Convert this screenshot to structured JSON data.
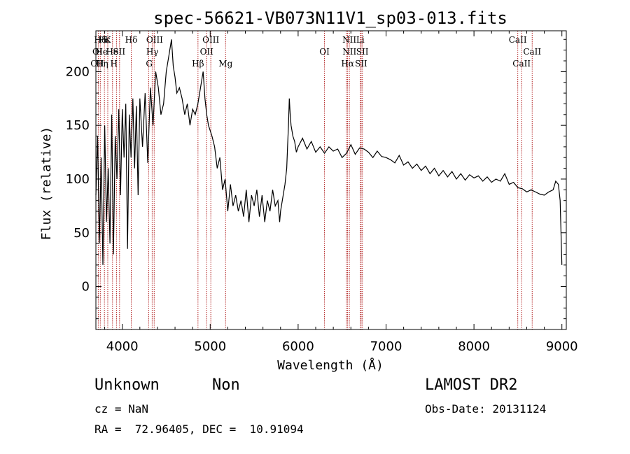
{
  "chart_data": {
    "type": "line",
    "title": "spec-56621-VB073N11V1_sp03-013.fits",
    "xlabel": "Wavelength (Å)",
    "ylabel": "Flux (relative)",
    "xlim": [
      3700,
      9050
    ],
    "ylim": [
      -40,
      238
    ],
    "x_ticks": [
      4000,
      5000,
      6000,
      7000,
      8000,
      9000
    ],
    "y_ticks": [
      0,
      50,
      100,
      150,
      200
    ],
    "grid": false,
    "series": [
      {
        "color": "#000000",
        "x": [
          3700,
          3720,
          3740,
          3760,
          3780,
          3800,
          3820,
          3840,
          3860,
          3880,
          3900,
          3920,
          3940,
          3960,
          3980,
          4000,
          4020,
          4040,
          4060,
          4080,
          4100,
          4120,
          4140,
          4160,
          4180,
          4200,
          4230,
          4260,
          4290,
          4320,
          4350,
          4380,
          4410,
          4440,
          4470,
          4500,
          4530,
          4560,
          4580,
          4600,
          4620,
          4650,
          4680,
          4710,
          4740,
          4770,
          4800,
          4830,
          4860,
          4880,
          4900,
          4920,
          4940,
          4960,
          4980,
          5000,
          5020,
          5050,
          5080,
          5110,
          5140,
          5170,
          5200,
          5230,
          5260,
          5290,
          5320,
          5350,
          5380,
          5410,
          5440,
          5470,
          5500,
          5530,
          5560,
          5590,
          5620,
          5650,
          5680,
          5710,
          5740,
          5770,
          5790,
          5800,
          5820,
          5850,
          5870,
          5880,
          5890,
          5900,
          5910,
          5920,
          5940,
          5960,
          5980,
          6000,
          6050,
          6100,
          6150,
          6200,
          6250,
          6300,
          6350,
          6400,
          6450,
          6500,
          6550,
          6600,
          6650,
          6700,
          6750,
          6800,
          6850,
          6900,
          6950,
          7000,
          7050,
          7100,
          7150,
          7200,
          7250,
          7300,
          7350,
          7400,
          7450,
          7500,
          7550,
          7600,
          7650,
          7700,
          7750,
          7800,
          7850,
          7900,
          7950,
          8000,
          8050,
          8100,
          8150,
          8200,
          8250,
          8300,
          8350,
          8400,
          8450,
          8500,
          8550,
          8600,
          8650,
          8700,
          8750,
          8800,
          8850,
          8900,
          8930,
          8960,
          8980,
          9000
        ],
        "y": [
          85,
          140,
          40,
          120,
          20,
          150,
          60,
          110,
          40,
          160,
          30,
          140,
          100,
          165,
          85,
          165,
          120,
          170,
          35,
          160,
          120,
          175,
          110,
          168,
          85,
          175,
          130,
          180,
          115,
          185,
          150,
          200,
          185,
          160,
          170,
          200,
          215,
          230,
          205,
          195,
          180,
          185,
          175,
          160,
          170,
          150,
          165,
          160,
          170,
          180,
          190,
          200,
          175,
          160,
          150,
          145,
          140,
          130,
          110,
          120,
          90,
          100,
          70,
          95,
          75,
          85,
          70,
          80,
          65,
          90,
          60,
          85,
          75,
          90,
          65,
          85,
          60,
          80,
          70,
          90,
          75,
          80,
          60,
          70,
          80,
          95,
          110,
          130,
          150,
          175,
          160,
          150,
          140,
          135,
          125,
          130,
          138,
          128,
          135,
          125,
          130,
          124,
          130,
          126,
          128,
          120,
          124,
          132,
          123,
          129,
          128,
          125,
          120,
          126,
          121,
          120,
          118,
          115,
          122,
          113,
          116,
          110,
          114,
          108,
          112,
          105,
          110,
          103,
          108,
          102,
          107,
          100,
          105,
          99,
          104,
          101,
          103,
          98,
          102,
          97,
          100,
          98,
          105,
          95,
          97,
          92,
          91,
          88,
          90,
          88,
          86,
          85,
          88,
          90,
          98,
          95,
          80,
          20
        ]
      }
    ],
    "line_labels": [
      {
        "text": "Hδ",
        "wave": 3750,
        "row": 1
      },
      {
        "text": "OI",
        "wave": 3718,
        "row": 2
      },
      {
        "text": "He",
        "wave": 3765,
        "row": 2
      },
      {
        "text": "OII",
        "wave": 3715,
        "row": 3
      },
      {
        "text": "Hη",
        "wave": 3770,
        "row": 3
      },
      {
        "text": "Hε",
        "wave": 3800,
        "row": 1
      },
      {
        "text": "K",
        "wave": 3834,
        "row": 1
      },
      {
        "text": "He",
        "wave": 3885,
        "row": 2
      },
      {
        "text": "SII",
        "wave": 3965,
        "row": 2
      },
      {
        "text": "H",
        "wave": 3905,
        "row": 3
      },
      {
        "text": "Hδ",
        "wave": 4102,
        "row": 1
      },
      {
        "text": "OIII",
        "wave": 4368,
        "row": 1
      },
      {
        "text": "Hγ",
        "wave": 4342,
        "row": 2
      },
      {
        "text": "G",
        "wave": 4306,
        "row": 3
      },
      {
        "text": "OIII",
        "wave": 5007,
        "row": 1
      },
      {
        "text": "OII",
        "wave": 4960,
        "row": 2
      },
      {
        "text": "Hβ",
        "wave": 4861,
        "row": 3
      },
      {
        "text": "Mg",
        "wave": 5175,
        "row": 3
      },
      {
        "text": "NII",
        "wave": 6583,
        "row": 1
      },
      {
        "text": "Li",
        "wave": 6708,
        "row": 1
      },
      {
        "text": "OI",
        "wave": 6300,
        "row": 2
      },
      {
        "text": "NII",
        "wave": 6584,
        "row": 2
      },
      {
        "text": "SII",
        "wave": 6730,
        "row": 2
      },
      {
        "text": "Hα",
        "wave": 6563,
        "row": 3
      },
      {
        "text": "SII",
        "wave": 6717,
        "row": 3
      },
      {
        "text": "CaII",
        "wave": 8498,
        "row": 1
      },
      {
        "text": "CaII",
        "wave": 8662,
        "row": 2
      },
      {
        "text": "CaII",
        "wave": 8542,
        "row": 3
      }
    ],
    "marker_lines": [
      3727,
      3750,
      3797,
      3835,
      3889,
      3934,
      3969,
      4102,
      4300,
      4340,
      4363,
      4861,
      4959,
      5007,
      5175,
      6300,
      6548,
      6563,
      6583,
      6708,
      6717,
      6731,
      8498,
      8542,
      8662
    ],
    "marker_color": "#b22222",
    "curve_color": "#000000"
  },
  "info": {
    "object_class": "Unknown",
    "subclass": "Non",
    "survey": "LAMOST DR2",
    "cz": "cz = NaN",
    "obs_date": "Obs-Date: 20131124",
    "coords": "RA =  72.96405, DEC =  10.91094"
  }
}
